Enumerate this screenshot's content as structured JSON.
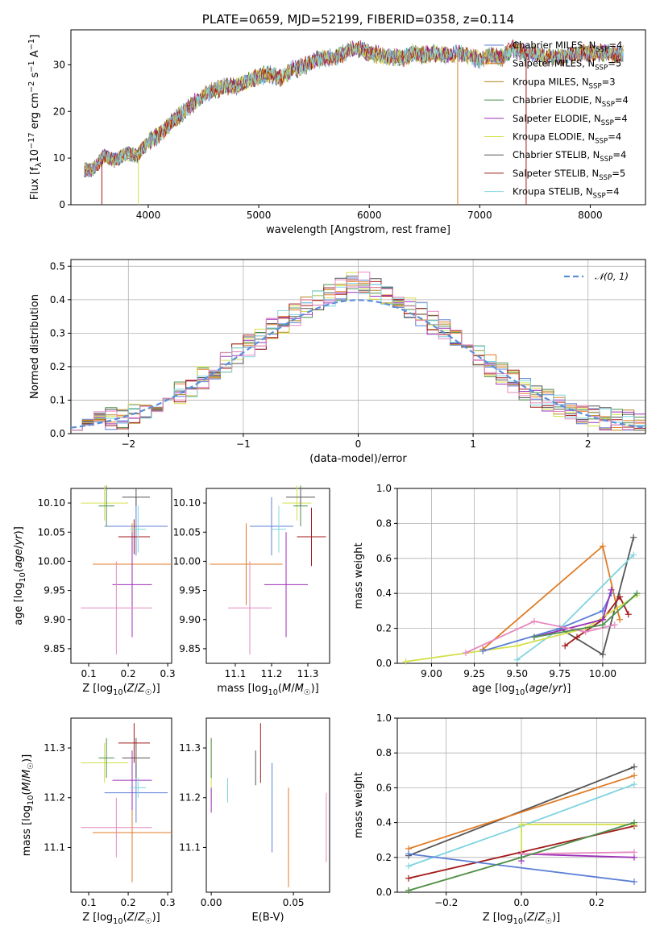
{
  "colors": {
    "chabrier_miles": "#5b7fd6",
    "salpeter_miles": "#e07b24",
    "kroupa_miles": "#b5851d",
    "chabrier_elodie": "#4e8f4e",
    "salpeter_elodie": "#9b30b8",
    "kroupa_elodie": "#d4e04a",
    "chabrier_stelib": "#555555",
    "salpeter_stelib": "#a31a1a",
    "kroupa_stelib": "#7fd4df",
    "pink": "#e589c0",
    "normal": "#5b8fd9"
  },
  "chart_data": [
    {
      "type": "line",
      "title": "PLATE=0659, MJD=52199, FIBERID=0358, z=0.114",
      "xlabel": "wavelength [Angstrom, rest frame]",
      "ylabel": "Flux [fλ10⁻¹⁷ erg cm⁻² s⁻¹ A⁻¹]",
      "xlim": [
        3300,
        8500
      ],
      "ylim": [
        0,
        37.5
      ],
      "xticks": [
        "4000",
        "5000",
        "6000",
        "7000",
        "8000"
      ],
      "yticks": [
        "0",
        "10",
        "20",
        "30"
      ],
      "grid": false,
      "legend_position": "upper-right",
      "continuum": {
        "x": [
          3420,
          3500,
          3600,
          3700,
          3800,
          3900,
          4000,
          4100,
          4200,
          4300,
          4400,
          4500,
          4600,
          4700,
          4800,
          4900,
          5000,
          5100,
          5200,
          5300,
          5400,
          5500,
          5600,
          5700,
          5800,
          5900,
          6000,
          6100,
          6200,
          6300,
          6400,
          6500,
          6600,
          6700,
          6800,
          6900,
          7000,
          7100,
          7200,
          7300,
          7400,
          7500,
          7600,
          7700,
          7800,
          7900,
          8000,
          8100,
          8200,
          8300
        ],
        "y": [
          7.5,
          7.5,
          10.5,
          9.5,
          11.0,
          10.5,
          13.5,
          15.0,
          17.5,
          19.5,
          21.5,
          23.5,
          24.5,
          25.5,
          25.5,
          26.5,
          27.5,
          28.0,
          27.0,
          29.0,
          29.5,
          31.0,
          31.5,
          31.5,
          33.0,
          33.5,
          32.5,
          32.0,
          31.5,
          31.5,
          32.5,
          32.0,
          32.5,
          32.0,
          32.5,
          32.0,
          31.0,
          32.0,
          31.5,
          33.5,
          32.5,
          32.5,
          31.5,
          31.5,
          32.0,
          32.5,
          32.5,
          32.5,
          32.5,
          32.0
        ]
      },
      "series": [
        {
          "name": "Chabrier MILES, N<sub>SSP</sub>=4",
          "color": "chabrier_miles"
        },
        {
          "name": "Salpeter MILES, N<sub>SSP</sub>=5",
          "color": "salpeter_miles"
        },
        {
          "name": "Kroupa MILES, N<sub>SSP</sub>=3",
          "color": "kroupa_miles"
        },
        {
          "name": "Chabrier ELODIE, N<sub>SSP</sub>=4",
          "color": "chabrier_elodie"
        },
        {
          "name": "Salpeter ELODIE, N<sub>SSP</sub>=4",
          "color": "salpeter_elodie"
        },
        {
          "name": "Kroupa ELODIE, N<sub>SSP</sub>=4",
          "color": "kroupa_elodie"
        },
        {
          "name": "Chabrier STELIB, N<sub>SSP</sub>=4",
          "color": "chabrier_stelib"
        },
        {
          "name": "Salpeter STELIB, N<sub>SSP</sub>=5",
          "color": "salpeter_stelib"
        },
        {
          "name": "Kroupa STELIB, N<sub>SSP</sub>=4",
          "color": "kroupa_stelib"
        }
      ]
    },
    {
      "type": "line",
      "xlabel": "(data-model)/error",
      "ylabel": "Normed distribution",
      "xlim": [
        -2.5,
        2.5
      ],
      "ylim": [
        0,
        0.52
      ],
      "xticks": [
        "−2",
        "−1",
        "0",
        "1",
        "2"
      ],
      "yticks": [
        "0.0",
        "0.1",
        "0.2",
        "0.3",
        "0.4",
        "0.5"
      ],
      "grid": true,
      "legend_position": "upper-right",
      "reference_curve": {
        "name": "𝒩(0, 1)",
        "mean": 0,
        "sigma": 1
      },
      "histogram_edges_step": 0.1,
      "histogram_envelope_x": [
        -2.5,
        -2.0,
        -1.5,
        -1.0,
        -0.5,
        0.0,
        0.5,
        1.0,
        1.5,
        2.0,
        2.5
      ],
      "histogram_envelope_y": [
        0.03,
        0.05,
        0.13,
        0.25,
        0.37,
        0.46,
        0.37,
        0.24,
        0.12,
        0.05,
        0.03
      ]
    },
    {
      "type": "scatter",
      "xlabel": "Z [log₁₀(Z/Z☉)]",
      "ylabel": "age  [log₁₀(age/yr)]",
      "xlim": [
        0.055,
        0.31
      ],
      "ylim": [
        9.825,
        10.125
      ],
      "xticks": [
        "0.1",
        "0.2",
        "0.3"
      ],
      "yticks": [
        "9.85",
        "9.90",
        "9.95",
        "10.00",
        "10.05",
        "10.10"
      ],
      "points": [
        {
          "color": "chabrier_miles",
          "x": 0.22,
          "xerr": 0.08,
          "y": 10.06,
          "yerr": 0.05
        },
        {
          "color": "salpeter_miles",
          "x": 0.21,
          "xerr": 0.1,
          "y": 9.995,
          "yerr": 0.07
        },
        {
          "color": "kroupa_elodie",
          "x": 0.14,
          "xerr": 0.06,
          "y": 10.1,
          "yerr": 0.03
        },
        {
          "color": "chabrier_elodie",
          "x": 0.145,
          "xerr": 0.02,
          "y": 10.095,
          "yerr": 0.035
        },
        {
          "color": "salpeter_elodie",
          "x": 0.21,
          "xerr": 0.05,
          "y": 9.96,
          "yerr": 0.09
        },
        {
          "color": "chabrier_stelib",
          "x": 0.22,
          "xerr": 0.035,
          "y": 10.11,
          "yerr": 0.015
        },
        {
          "color": "salpeter_stelib",
          "x": 0.215,
          "xerr": 0.04,
          "y": 10.042,
          "yerr": 0.03
        },
        {
          "color": "kroupa_stelib",
          "x": 0.225,
          "xerr": 0.02,
          "y": 10.055,
          "yerr": 0.04
        },
        {
          "color": "pink",
          "x": 0.17,
          "xerr": 0.09,
          "y": 9.92,
          "yerr": 0.08
        }
      ]
    },
    {
      "type": "scatter",
      "xlabel": "mass [log₁₀(M/M☉)]",
      "ylabel": "",
      "xlim": [
        11.02,
        11.36
      ],
      "ylim": [
        9.825,
        10.125
      ],
      "xticks": [
        "11.1",
        "11.2",
        "11.3"
      ],
      "yticks": [
        "9.85",
        "9.90",
        "9.95",
        "10.00",
        "10.05",
        "10.10"
      ],
      "points": [
        {
          "color": "chabrier_miles",
          "x": 11.2,
          "xerr": 0.06,
          "y": 10.06,
          "yerr": 0.05
        },
        {
          "color": "salpeter_miles",
          "x": 11.13,
          "xerr": 0.1,
          "y": 9.995,
          "yerr": 0.07
        },
        {
          "color": "kroupa_elodie",
          "x": 11.27,
          "xerr": 0.04,
          "y": 10.1,
          "yerr": 0.03
        },
        {
          "color": "chabrier_elodie",
          "x": 11.28,
          "xerr": 0.02,
          "y": 10.095,
          "yerr": 0.035
        },
        {
          "color": "salpeter_elodie",
          "x": 11.24,
          "xerr": 0.06,
          "y": 9.96,
          "yerr": 0.09
        },
        {
          "color": "chabrier_stelib",
          "x": 11.28,
          "xerr": 0.04,
          "y": 10.11,
          "yerr": 0.015
        },
        {
          "color": "salpeter_stelib",
          "x": 11.31,
          "xerr": 0.04,
          "y": 10.042,
          "yerr": 0.05
        },
        {
          "color": "kroupa_stelib",
          "x": 11.22,
          "xerr": 0.02,
          "y": 10.055,
          "yerr": 0.04
        },
        {
          "color": "pink",
          "x": 11.14,
          "xerr": 0.06,
          "y": 9.92,
          "yerr": 0.08
        }
      ]
    },
    {
      "type": "line",
      "xlabel": "age  [log₁₀(age/yr)]",
      "ylabel": "mass weight",
      "xlim": [
        8.8,
        10.25
      ],
      "ylim": [
        0,
        1.0
      ],
      "xticks": [
        "9.00",
        "9.25",
        "9.50",
        "9.75",
        "10.00"
      ],
      "yticks": [
        "0.0",
        "0.2",
        "0.4",
        "0.6",
        "0.8",
        "1.0"
      ],
      "grid": true,
      "series": [
        {
          "color": "salpeter_miles",
          "x": [
            9.3,
            10.0,
            10.1
          ],
          "y": [
            0.08,
            0.67,
            0.25
          ]
        },
        {
          "color": "chabrier_stelib",
          "x": [
            9.75,
            10.0,
            10.18
          ],
          "y": [
            0.2,
            0.05,
            0.72
          ]
        },
        {
          "color": "kroupa_stelib",
          "x": [
            9.5,
            9.75,
            10.18
          ],
          "y": [
            0.02,
            0.2,
            0.62
          ]
        },
        {
          "color": "salpeter_stelib",
          "x": [
            9.78,
            9.85,
            10.0,
            10.1,
            10.15
          ],
          "y": [
            0.1,
            0.15,
            0.25,
            0.38,
            0.28
          ]
        },
        {
          "color": "kroupa_elodie",
          "x": [
            8.85,
            9.5,
            9.9,
            10.2
          ],
          "y": [
            0.01,
            0.1,
            0.2,
            0.39
          ]
        },
        {
          "color": "chabrier_miles",
          "x": [
            9.3,
            9.75,
            10.0,
            10.05
          ],
          "y": [
            0.07,
            0.2,
            0.3,
            0.4
          ]
        },
        {
          "color": "salpeter_elodie",
          "x": [
            9.6,
            10.0,
            10.05
          ],
          "y": [
            0.15,
            0.25,
            0.42
          ]
        },
        {
          "color": "pink",
          "x": [
            9.2,
            9.6,
            9.9,
            10.07
          ],
          "y": [
            0.06,
            0.24,
            0.18,
            0.22
          ]
        },
        {
          "color": "chabrier_elodie",
          "x": [
            9.6,
            10.0,
            10.2
          ],
          "y": [
            0.15,
            0.22,
            0.4
          ]
        }
      ]
    },
    {
      "type": "scatter",
      "xlabel": "Z [log₁₀(Z/Z☉)]",
      "ylabel": "mass [log₁₀(M/M☉)]",
      "xlim": [
        0.055,
        0.31
      ],
      "ylim": [
        11.01,
        11.36
      ],
      "xticks": [
        "0.1",
        "0.2",
        "0.3"
      ],
      "yticks": [
        "11.1",
        "11.2",
        "11.3"
      ],
      "points": [
        {
          "color": "chabrier_miles",
          "x": 0.22,
          "xerr": 0.08,
          "y": 11.21,
          "yerr": 0.06
        },
        {
          "color": "salpeter_miles",
          "x": 0.21,
          "xerr": 0.1,
          "y": 11.13,
          "yerr": 0.1
        },
        {
          "color": "kroupa_elodie",
          "x": 0.14,
          "xerr": 0.06,
          "y": 11.27,
          "yerr": 0.04
        },
        {
          "color": "chabrier_elodie",
          "x": 0.145,
          "xerr": 0.02,
          "y": 11.28,
          "yerr": 0.04
        },
        {
          "color": "salpeter_elodie",
          "x": 0.21,
          "xerr": 0.05,
          "y": 11.235,
          "yerr": 0.06
        },
        {
          "color": "chabrier_stelib",
          "x": 0.22,
          "xerr": 0.035,
          "y": 11.28,
          "yerr": 0.04
        },
        {
          "color": "salpeter_stelib",
          "x": 0.215,
          "xerr": 0.04,
          "y": 11.31,
          "yerr": 0.04
        },
        {
          "color": "kroupa_stelib",
          "x": 0.225,
          "xerr": 0.02,
          "y": 11.22,
          "yerr": 0.02
        },
        {
          "color": "pink",
          "x": 0.17,
          "xerr": 0.09,
          "y": 11.14,
          "yerr": 0.06
        }
      ]
    },
    {
      "type": "scatter",
      "xlabel": "E(B-V)",
      "ylabel": "",
      "xlim": [
        -0.003,
        0.072
      ],
      "ylim": [
        11.01,
        11.36
      ],
      "xticks": [
        "0.00",
        "0.05"
      ],
      "yticks": [
        "11.1",
        "11.2",
        "11.3"
      ],
      "points": [
        {
          "color": "kroupa_elodie",
          "x": 0.0,
          "y": 11.255,
          "yerr": 0.065
        },
        {
          "color": "chabrier_elodie",
          "x": 0.0,
          "y": 11.28,
          "yerr": 0.04
        },
        {
          "color": "salpeter_elodie",
          "x": 0.0,
          "y": 11.195,
          "yerr": 0.025
        },
        {
          "color": "kroupa_stelib",
          "x": 0.01,
          "y": 11.215,
          "yerr": 0.025
        },
        {
          "color": "chabrier_stelib",
          "x": 0.027,
          "y": 11.26,
          "yerr": 0.035
        },
        {
          "color": "salpeter_stelib",
          "x": 0.03,
          "y": 11.29,
          "yerr": 0.06
        },
        {
          "color": "chabrier_miles",
          "x": 0.037,
          "y": 11.18,
          "yerr": 0.09
        },
        {
          "color": "salpeter_miles",
          "x": 0.047,
          "y": 11.12,
          "yerr": 0.1
        },
        {
          "color": "pink",
          "x": 0.07,
          "y": 11.14,
          "yerr": 0.07
        }
      ]
    },
    {
      "type": "line",
      "xlabel": "Z [log₁₀(Z/Z☉)]",
      "ylabel": "mass weight",
      "xlim": [
        -0.33,
        0.33
      ],
      "ylim": [
        0,
        1.0
      ],
      "xticks": [
        "−0.2",
        "0.0",
        "0.2"
      ],
      "yticks": [
        "0.0",
        "0.2",
        "0.4",
        "0.6",
        "0.8",
        "1.0"
      ],
      "grid": true,
      "series": [
        {
          "color": "chabrier_stelib",
          "x": [
            -0.3,
            0.3
          ],
          "y": [
            0.21,
            0.72
          ]
        },
        {
          "color": "salpeter_miles",
          "x": [
            -0.3,
            0.3
          ],
          "y": [
            0.25,
            0.67
          ]
        },
        {
          "color": "kroupa_stelib",
          "x": [
            -0.3,
            0.0,
            0.3
          ],
          "y": [
            0.15,
            0.38,
            0.62
          ]
        },
        {
          "color": "salpeter_stelib",
          "x": [
            -0.3,
            0.0,
            0.3
          ],
          "y": [
            0.08,
            0.23,
            0.38
          ]
        },
        {
          "color": "kroupa_elodie",
          "x": [
            -0.3,
            0.0,
            0.0,
            0.3
          ],
          "y": [
            0.01,
            0.2,
            0.39,
            0.39
          ]
        },
        {
          "color": "chabrier_miles",
          "x": [
            -0.3,
            0.3
          ],
          "y": [
            0.22,
            0.06
          ]
        },
        {
          "color": "salpeter_elodie",
          "x": [
            0.0,
            0.0,
            0.3
          ],
          "y": [
            0.18,
            0.22,
            0.2
          ]
        },
        {
          "color": "pink",
          "x": [
            0.0,
            0.3
          ],
          "y": [
            0.22,
            0.23
          ]
        },
        {
          "color": "chabrier_elodie",
          "x": [
            -0.3,
            0.0,
            0.3
          ],
          "y": [
            0.01,
            0.2,
            0.4
          ]
        }
      ]
    }
  ]
}
